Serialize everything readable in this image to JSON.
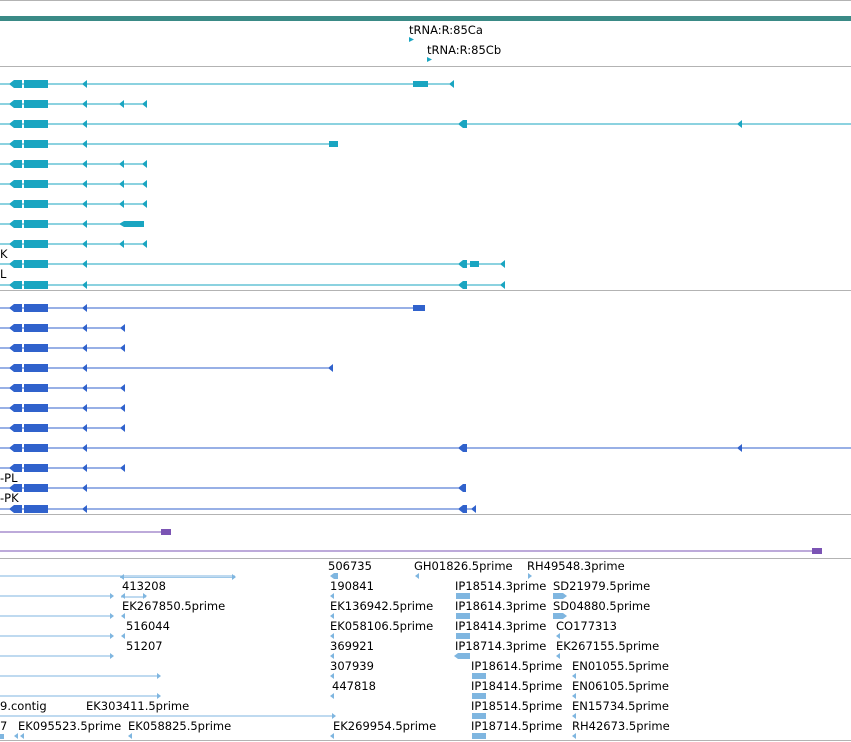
{
  "colors": {
    "teal_bar": "#3a8a86",
    "teal": "#1aa5c1",
    "blue": "#3062cc",
    "purple": "#7b54b4",
    "est": "#7fb6e0",
    "divider": "#b3b3b3"
  },
  "labels": {
    "trna_a": "tRNA:R:85Ca",
    "trna_b": "tRNA:R:85Cb",
    "teal_k": "K",
    "teal_l": "L",
    "blue_pl": "-PL",
    "blue_pk": "-PK",
    "e_506735": "506735",
    "e_gh01826": "GH01826.5prime",
    "e_rh49548": "RH49548.3prime",
    "e_413208": "413208",
    "e_190841": "190841",
    "e_ip18514_3": "IP18514.3prime",
    "e_sd21979": "SD21979.5prime",
    "e_ek267850": "EK267850.5prime",
    "e_ek136942": "EK136942.5prime",
    "e_ip18614_3": "IP18614.3prime",
    "e_sd04880": "SD04880.5prime",
    "e_516044": "516044",
    "e_ek058106": "EK058106.5prime",
    "e_ip18414_3": "IP18414.3prime",
    "e_co177313": "CO177313",
    "e_51207": "51207",
    "e_369921": "369921",
    "e_ip18714_3": "IP18714.3prime",
    "e_ek267155": "EK267155.5prime",
    "e_307939": "307939",
    "e_ip18614_5": "IP18614.5prime",
    "e_en01055": "EN01055.5prime",
    "e_447818": "447818",
    "e_ip18414_5": "IP18414.5prime",
    "e_en06105": "EN06105.5prime",
    "e_contig": "9.contig",
    "e_ek303411": "EK303411.5prime",
    "e_ip18514_5": "IP18514.5prime",
    "e_en15734": "EN15734.5prime",
    "e_7": "7",
    "e_ek095523": "EK095523.5prime",
    "e_ek058825": "EK058825.5prime",
    "e_ek269954": "EK269954.5prime",
    "e_ip18714_5": "IP18714.5prime",
    "e_rh42673": "RH42673.5prime"
  }
}
